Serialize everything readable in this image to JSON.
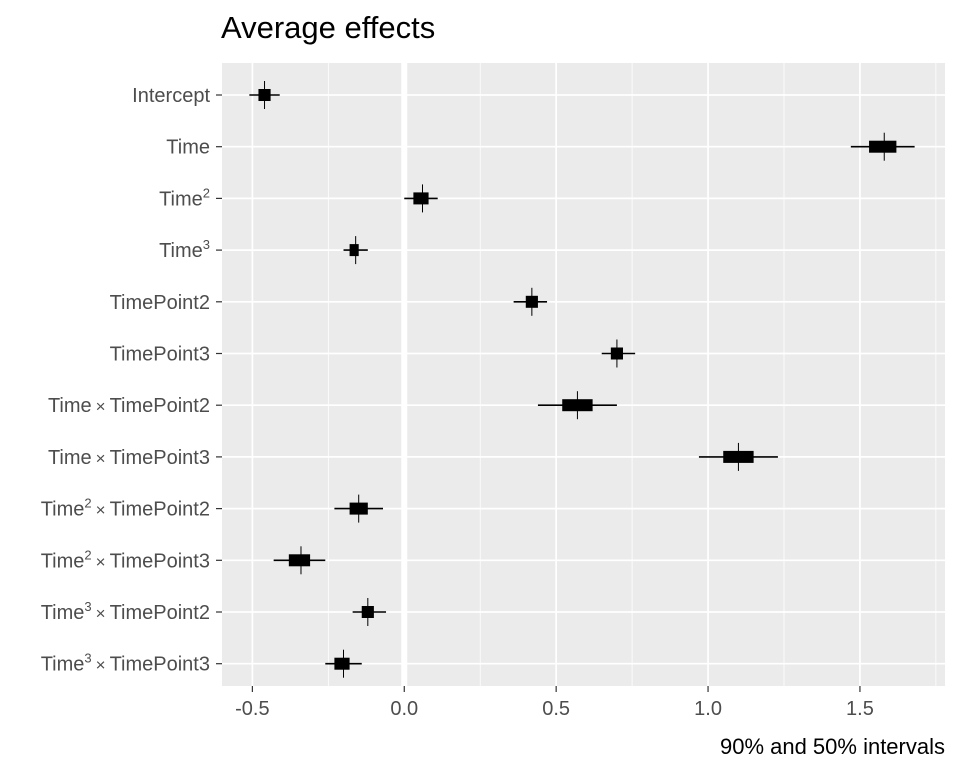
{
  "chart_data": {
    "type": "interval",
    "title": "Average effects",
    "xlabel": "90% and 50% intervals",
    "xlim": [
      -0.6,
      1.78
    ],
    "x_ticks": [
      {
        "value": -0.5,
        "label": "-0.5"
      },
      {
        "value": 0.0,
        "label": "0.0"
      },
      {
        "value": 0.5,
        "label": "0.5"
      },
      {
        "value": 1.0,
        "label": "1.0"
      },
      {
        "value": 1.5,
        "label": "1.5"
      }
    ],
    "vline_at": 0,
    "grid": true,
    "terms": [
      {
        "label": "Intercept",
        "sup": "",
        "suffix": "",
        "median": -0.46,
        "ci50": [
          -0.48,
          -0.44
        ],
        "ci90": [
          -0.51,
          -0.41
        ]
      },
      {
        "label": "Time",
        "sup": "",
        "suffix": "",
        "median": 1.58,
        "ci50": [
          1.53,
          1.62
        ],
        "ci90": [
          1.47,
          1.68
        ]
      },
      {
        "label": "Time",
        "sup": "2",
        "suffix": "",
        "median": 0.06,
        "ci50": [
          0.03,
          0.08
        ],
        "ci90": [
          0.0,
          0.11
        ]
      },
      {
        "label": "Time",
        "sup": "3",
        "suffix": "",
        "median": -0.16,
        "ci50": [
          -0.18,
          -0.15
        ],
        "ci90": [
          -0.2,
          -0.12
        ]
      },
      {
        "label": "TimePoint2",
        "sup": "",
        "suffix": "",
        "median": 0.42,
        "ci50": [
          0.4,
          0.44
        ],
        "ci90": [
          0.36,
          0.47
        ]
      },
      {
        "label": "TimePoint3",
        "sup": "",
        "suffix": "",
        "median": 0.7,
        "ci50": [
          0.68,
          0.72
        ],
        "ci90": [
          0.65,
          0.76
        ]
      },
      {
        "label": "Time",
        "sup": "",
        "suffix": "TimePoint2",
        "median": 0.57,
        "ci50": [
          0.52,
          0.62
        ],
        "ci90": [
          0.44,
          0.7
        ]
      },
      {
        "label": "Time",
        "sup": "",
        "suffix": "TimePoint3",
        "median": 1.1,
        "ci50": [
          1.05,
          1.15
        ],
        "ci90": [
          0.97,
          1.23
        ]
      },
      {
        "label": "Time",
        "sup": "2",
        "suffix": "TimePoint2",
        "median": -0.15,
        "ci50": [
          -0.18,
          -0.12
        ],
        "ci90": [
          -0.23,
          -0.07
        ]
      },
      {
        "label": "Time",
        "sup": "2",
        "suffix": "TimePoint3",
        "median": -0.34,
        "ci50": [
          -0.38,
          -0.31
        ],
        "ci90": [
          -0.43,
          -0.26
        ]
      },
      {
        "label": "Time",
        "sup": "3",
        "suffix": "TimePoint2",
        "median": -0.12,
        "ci50": [
          -0.14,
          -0.1
        ],
        "ci90": [
          -0.17,
          -0.06
        ]
      },
      {
        "label": "Time",
        "sup": "3",
        "suffix": "TimePoint3",
        "median": -0.2,
        "ci50": [
          -0.23,
          -0.18
        ],
        "ci90": [
          -0.26,
          -0.14
        ]
      }
    ],
    "colors": {
      "panel": "#ebebeb",
      "grid": "#ffffff",
      "mark": "#000000",
      "axis_text": "#4d4d4d"
    }
  }
}
